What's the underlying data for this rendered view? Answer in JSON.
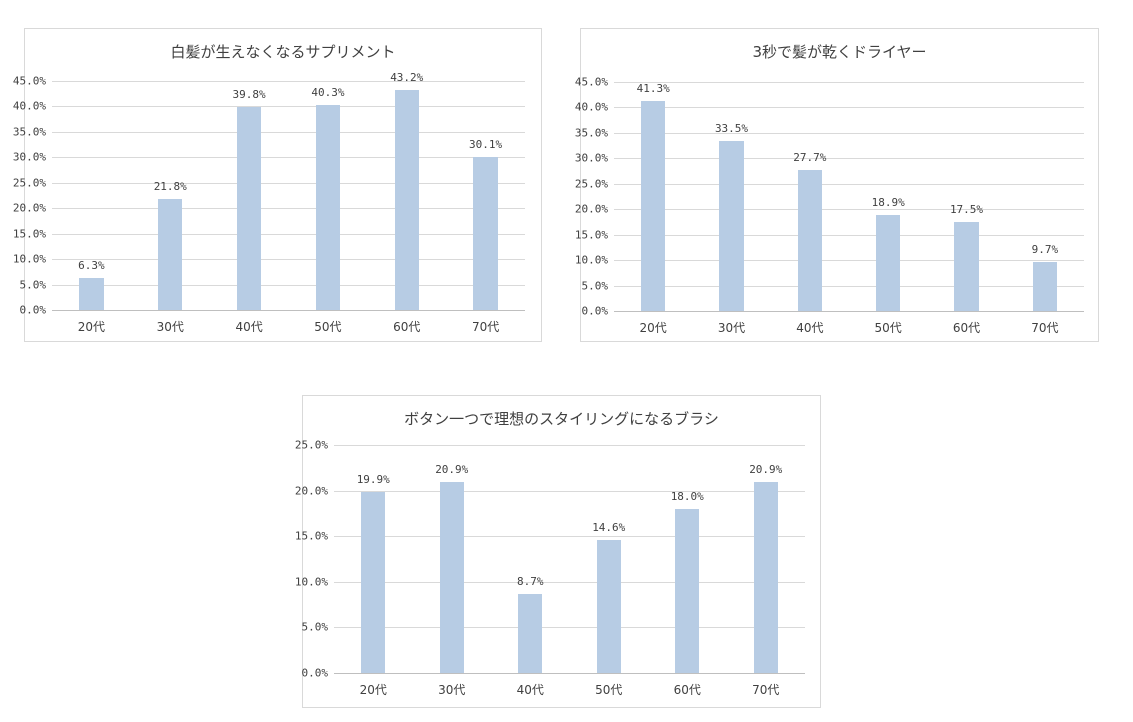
{
  "chart_data": [
    {
      "type": "bar",
      "title": "白髪が生えなくなるサプリメント",
      "categories": [
        "20代",
        "30代",
        "40代",
        "50代",
        "60代",
        "70代"
      ],
      "values": [
        6.3,
        21.8,
        39.8,
        40.3,
        43.2,
        30.1
      ],
      "value_labels": [
        "6.3%",
        "21.8%",
        "39.8%",
        "40.3%",
        "43.2%",
        "30.1%"
      ],
      "yticks": [
        "0.0%",
        "5.0%",
        "10.0%",
        "15.0%",
        "20.0%",
        "25.0%",
        "30.0%",
        "35.0%",
        "40.0%",
        "45.0%"
      ],
      "ylim": [
        0,
        45
      ],
      "xlabel": "",
      "ylabel": "",
      "grid": true,
      "legend": "none",
      "bar_color": "#b7cce4"
    },
    {
      "type": "bar",
      "title": "3秒で髪が乾くドライヤー",
      "categories": [
        "20代",
        "30代",
        "40代",
        "50代",
        "60代",
        "70代"
      ],
      "values": [
        41.3,
        33.5,
        27.7,
        18.9,
        17.5,
        9.7
      ],
      "value_labels": [
        "41.3%",
        "33.5%",
        "27.7%",
        "18.9%",
        "17.5%",
        "9.7%"
      ],
      "yticks": [
        "0.0%",
        "5.0%",
        "10.0%",
        "15.0%",
        "20.0%",
        "25.0%",
        "30.0%",
        "35.0%",
        "40.0%",
        "45.0%"
      ],
      "ylim": [
        0,
        45
      ],
      "xlabel": "",
      "ylabel": "",
      "grid": true,
      "legend": "none",
      "bar_color": "#b7cce4"
    },
    {
      "type": "bar",
      "title": "ボタン一つで理想のスタイリングになるブラシ",
      "categories": [
        "20代",
        "30代",
        "40代",
        "50代",
        "60代",
        "70代"
      ],
      "values": [
        19.9,
        20.9,
        8.7,
        14.6,
        18.0,
        20.9
      ],
      "value_labels": [
        "19.9%",
        "20.9%",
        "8.7%",
        "14.6%",
        "18.0%",
        "20.9%"
      ],
      "yticks": [
        "0.0%",
        "5.0%",
        "10.0%",
        "15.0%",
        "20.0%",
        "25.0%"
      ],
      "ylim": [
        0,
        25
      ],
      "xlabel": "",
      "ylabel": "",
      "grid": true,
      "legend": "none",
      "bar_color": "#b7cce4"
    }
  ]
}
